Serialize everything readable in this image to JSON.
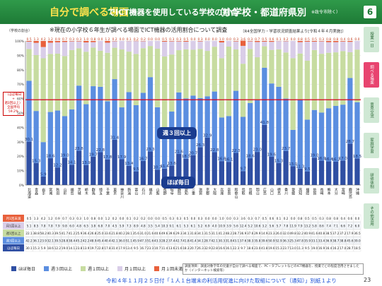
{
  "header": {
    "title_emph": "自分で調べる場面",
    "title_main": "でICT機器を使用している学校の割合",
    "title_region": "（小学校・都道府県別",
    "title_note": "※政令市除く）",
    "page_box": "6"
  },
  "subtitle": "※現在の小学校６年生が調べる場面でICT機器の活用割合について調査",
  "source": "（R4全国学力・学習状況調査結果より[令和４年４月実施]）",
  "unit": "（学校の割合）",
  "national_avg_label": "全国平均",
  "national_avg_lines": [
    "（ほぼ毎日",
    "+",
    "週3回以上）",
    "全国平均",
    "59.2%"
  ],
  "badges": {
    "weekly3": "週３回以上",
    "daily": "ほぼ毎日"
  },
  "sidebar": {
    "tabs": [
      "授業一日",
      "調べる場面",
      "意見交流",
      "家庭学習",
      "研修体制",
      "その他活用"
    ]
  },
  "legend": [
    {
      "label": "ほぼ毎日",
      "color": "#2f4fa3"
    },
    {
      "label": "週３回以上",
      "color": "#5b8ee0"
    },
    {
      "label": "週１回以上",
      "color": "#c7dca0"
    },
    {
      "label": "月１回以上",
      "color": "#d9cde8"
    },
    {
      "label": "月１回未満",
      "color": "#e8603c"
    }
  ],
  "note": "調査項目：調査対象学年の児童が自分で調べる場面で、PC・タブレットなどのICT機器を、授業でどの程度活用させましたか（インターネット検索等）",
  "footer": "令和４年１１月２５日付「１人１台端末の利活用促進に向けた取組について（通知）」別紙１より",
  "page_number": "23",
  "table_row_labels": [
    "月1回未満",
    "月1回以上",
    "週1回以上",
    "週3回以上",
    "ほぼ毎日"
  ],
  "chart_data": {
    "type": "bar",
    "stacked": true,
    "ylim": [
      0,
      100
    ],
    "ytick_labels": [
      "0%",
      "10%",
      "20%",
      "30%",
      "40%",
      "50%",
      "60%",
      "70%",
      "80%",
      "90%",
      "100%"
    ],
    "reference_line": 59.2,
    "categories": [
      "北海道",
      "青森",
      "岩手",
      "宮城",
      "秋田",
      "山形",
      "福島",
      "茨城",
      "栃木",
      "群馬",
      "埼玉",
      "千葉",
      "東京",
      "神奈川",
      "新潟",
      "富山",
      "石川",
      "福井",
      "山梨",
      "長野",
      "岐阜",
      "静岡",
      "愛知",
      "三重",
      "滋賀",
      "京都",
      "大阪",
      "兵庫",
      "奈良",
      "和歌山",
      "鳥取",
      "島根",
      "岡山",
      "広島",
      "山口",
      "徳島",
      "香川",
      "愛媛",
      "高知",
      "福岡",
      "佐賀",
      "長崎",
      "熊本",
      "大分",
      "宮崎",
      "鹿児島",
      "沖縄"
    ],
    "series": [
      {
        "name": "ほぼ毎日",
        "values": [
          30.1,
          15.3,
          5.9,
          18.6,
          12.2,
          19.0,
          14.1,
          23.8,
          13.9,
          19.7,
          22.8,
          17.8,
          31.4,
          17.9,
          13.4,
          9.5,
          16.7,
          23.3,
          10.7,
          11.4,
          13.6,
          21.6,
          18.3,
          20.7,
          26.3,
          32.9,
          22.8,
          16.6,
          16.1,
          22.3,
          9.7,
          18.6,
          23.0,
          41.8,
          19.6,
          15.3,
          23.7,
          13.0,
          11.3,
          9.5,
          19.0,
          16.9,
          16.4,
          16.2,
          17.0,
          28.7,
          18.5
        ]
      },
      {
        "name": "週３回以上",
        "values": [
          42.2,
          36.1,
          23.9,
          32.1,
          39.5,
          28.8,
          38.4,
          45.2,
          42.2,
          48.9,
          45.4,
          40.4,
          42.1,
          36.0,
          51.1,
          45.9,
          47.3,
          51.6,
          43.3,
          28.2,
          37.4,
          42.7,
          41.8,
          41.4,
          34.1,
          28.7,
          42.1,
          30.3,
          31.8,
          43.1,
          37.6,
          38.3,
          35.8,
          39.6,
          50.9,
          52.9,
          36.3,
          25.3,
          47.8,
          35.9,
          33.1,
          33.4,
          36.9,
          38.7,
          38.8,
          45.6,
          39.0
        ]
      },
      {
        "name": "週１回以上",
        "values": [
          22.1,
          38.8,
          58.2,
          40.3,
          39.5,
          41.7,
          41.2,
          25.9,
          36.4,
          26.8,
          25.0,
          33.6,
          21.8,
          40.2,
          28.1,
          35.6,
          31.0,
          21.6,
          40.6,
          49.6,
          39.6,
          29.3,
          34.1,
          31.8,
          34.1,
          31.5,
          31.1,
          41.2,
          48.2,
          28.7,
          36.9,
          37.6,
          29.9,
          14.9,
          23.3,
          26.0,
          32.0,
          49.8,
          32.2,
          40.9,
          41.6,
          40.8,
          38.5,
          37.2,
          37.2,
          17.9,
          36.5
        ]
      },
      {
        "name": "月１回以上",
        "values": [
          5.1,
          8.5,
          7.8,
          7.8,
          7.9,
          9.8,
          6.0,
          4.8,
          6.5,
          3.8,
          6.8,
          7.0,
          4.5,
          5.9,
          7.3,
          8.9,
          4.8,
          3.5,
          5.4,
          10.3,
          9.1,
          6.1,
          5.3,
          6.1,
          5.2,
          6.9,
          4.0,
          10.9,
          3.9,
          5.6,
          12.4,
          5.2,
          10.6,
          3.2,
          5.6,
          5.7,
          7.8,
          11.9,
          7.9,
          13.2,
          5.8,
          8.6,
          7.4,
          7.1,
          6.6,
          7.2,
          6.0
        ]
      },
      {
        "name": "月１回未満",
        "values": [
          0.5,
          1.3,
          4.2,
          1.2,
          0.9,
          0.7,
          0.3,
          0.3,
          1.0,
          0.8,
          0.0,
          1.2,
          0.2,
          0.0,
          0.1,
          0.2,
          0.2,
          0.0,
          0.0,
          0.5,
          0.3,
          0.3,
          0.5,
          0.0,
          0.3,
          0.0,
          0.0,
          1.0,
          0.0,
          0.3,
          3.6,
          0.3,
          0.7,
          0.5,
          0.6,
          0.1,
          0.2,
          0.0,
          0.8,
          0.5,
          0.5,
          0.3,
          0.8,
          0.8,
          0.4,
          0.6,
          0.0
        ]
      }
    ]
  }
}
